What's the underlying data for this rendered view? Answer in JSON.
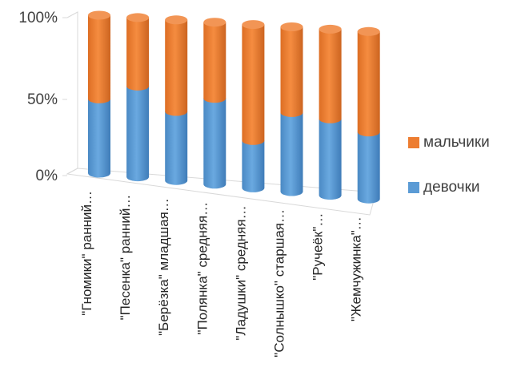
{
  "chart_data": {
    "type": "bar",
    "stacked": "percent",
    "three_d": true,
    "bar_shape": "cylinder",
    "categories": [
      "\"Гномики\" ранний…",
      "\"Песенка\" ранний…",
      "\"Берёзка\" младшая…",
      "\"Полянка\" средняя…",
      "\"Ладушки\" средняя…",
      "\"Солнышко\" старшая…",
      "\"Ручеёк\"…",
      "\"Жемчужинка\"…"
    ],
    "series": [
      {
        "name": "девочки",
        "color": "#5B9BD5",
        "values": [
          47,
          57,
          43,
          53,
          29,
          48,
          46,
          40
        ]
      },
      {
        "name": "мальчики",
        "color": "#ED7D31",
        "values": [
          53,
          43,
          57,
          47,
          71,
          52,
          54,
          60
        ]
      }
    ],
    "yticks": [
      "0%",
      "50%",
      "100%"
    ],
    "ylim": [
      0,
      100
    ],
    "legend_position": "right",
    "grid": false
  }
}
